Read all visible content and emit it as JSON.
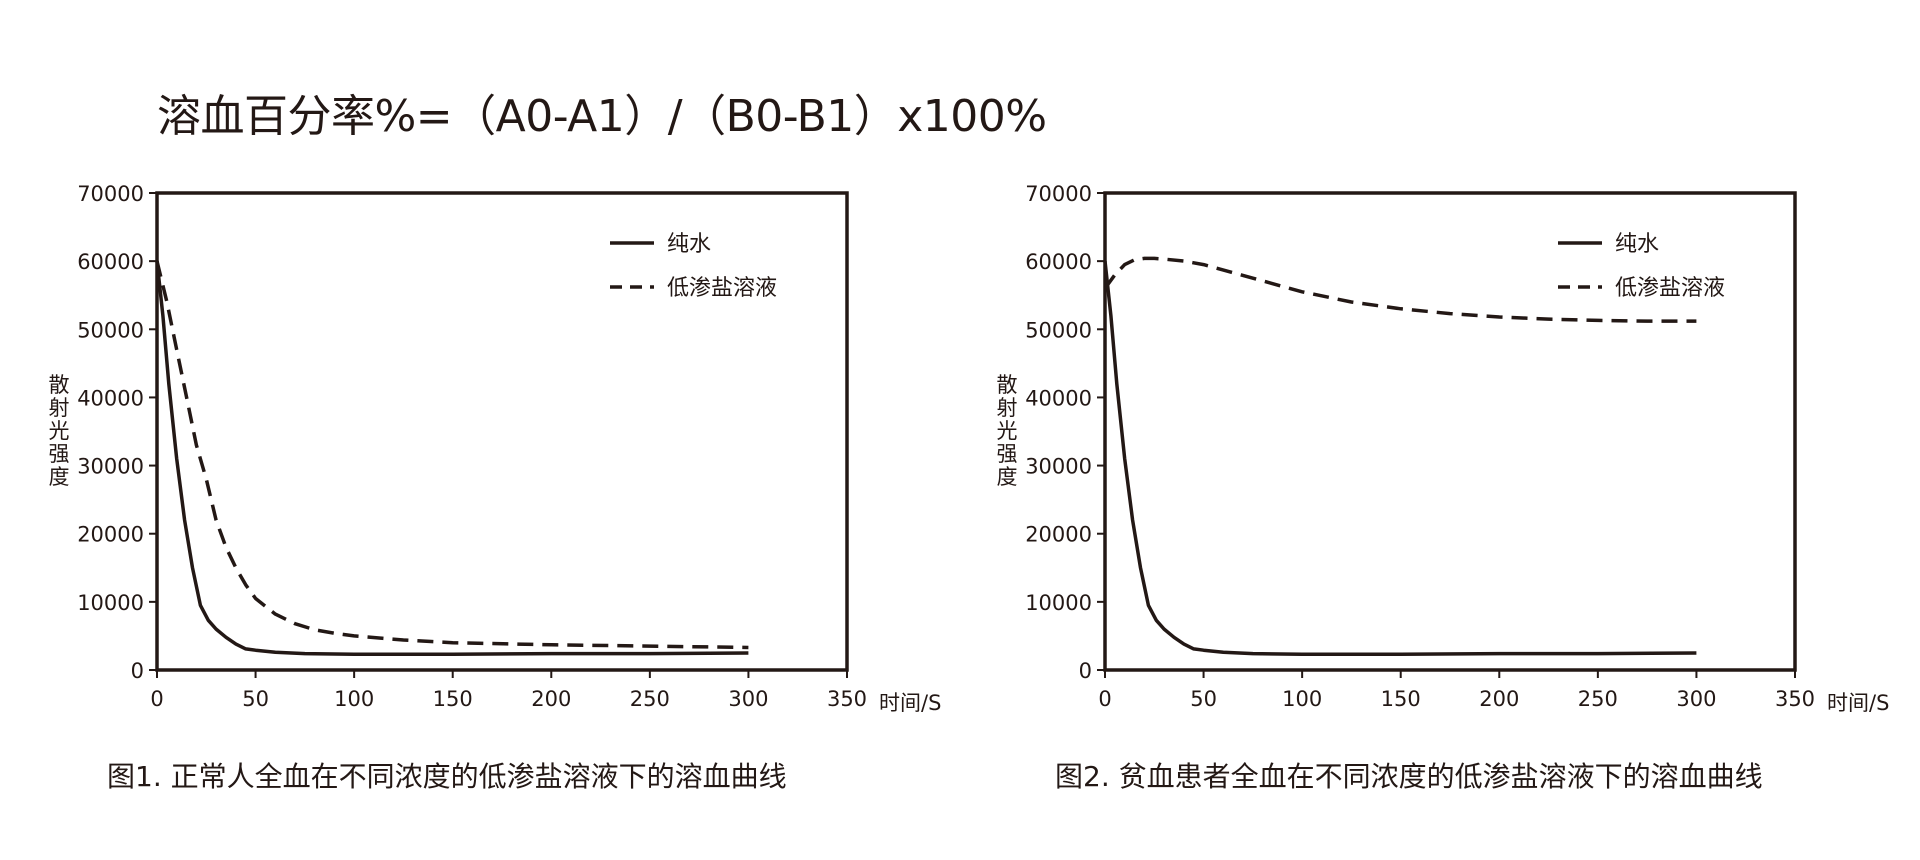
{
  "formula": "溶血百分率%=（A0-A1）/（B0-B1）x100%",
  "colors": {
    "ink": "#231815"
  },
  "chart_data": [
    {
      "type": "line",
      "caption": "图1. 正常人全血在不同浓度的低渗盐溶液下的溶血曲线",
      "xlabel": "时间/S",
      "ylabel": "散射光强度",
      "xlim": [
        0,
        350
      ],
      "ylim": [
        0,
        70000
      ],
      "xticks": [
        0,
        50,
        100,
        150,
        200,
        250,
        300,
        350
      ],
      "yticks": [
        0,
        10000,
        20000,
        30000,
        40000,
        50000,
        60000,
        70000
      ],
      "grid": false,
      "legend": "top-right",
      "series": [
        {
          "name": "纯水",
          "style": "solid",
          "x": [
            0,
            3,
            6,
            10,
            14,
            18,
            22,
            26,
            30,
            35,
            40,
            45,
            50,
            60,
            75,
            100,
            125,
            150,
            200,
            250,
            300
          ],
          "y": [
            60000,
            52000,
            42000,
            31000,
            22000,
            15000,
            9500,
            7300,
            6000,
            4800,
            3800,
            3100,
            2900,
            2600,
            2400,
            2300,
            2300,
            2300,
            2400,
            2400,
            2500
          ]
        },
        {
          "name": "低渗盐溶液",
          "style": "dashed",
          "x": [
            0,
            5,
            10,
            15,
            20,
            25,
            30,
            35,
            40,
            45,
            50,
            60,
            70,
            80,
            90,
            100,
            125,
            150,
            200,
            250,
            300
          ],
          "y": [
            60000,
            54000,
            47000,
            40000,
            33000,
            28000,
            22000,
            18000,
            15000,
            12500,
            10500,
            8200,
            6800,
            5900,
            5400,
            5000,
            4400,
            4000,
            3700,
            3500,
            3300
          ]
        }
      ]
    },
    {
      "type": "line",
      "caption": "图2. 贫血患者全血在不同浓度的低渗盐溶液下的溶血曲线",
      "xlabel": "时间/S",
      "ylabel": "散射光强度",
      "xlim": [
        0,
        350
      ],
      "ylim": [
        0,
        70000
      ],
      "xticks": [
        0,
        50,
        100,
        150,
        200,
        250,
        300,
        350
      ],
      "yticks": [
        0,
        10000,
        20000,
        30000,
        40000,
        50000,
        60000,
        70000
      ],
      "grid": false,
      "legend": "top-right",
      "series": [
        {
          "name": "纯水",
          "style": "solid",
          "x": [
            0,
            3,
            6,
            10,
            14,
            18,
            22,
            26,
            30,
            35,
            40,
            45,
            50,
            60,
            75,
            100,
            125,
            150,
            200,
            250,
            300
          ],
          "y": [
            60000,
            52000,
            42000,
            31000,
            22000,
            15000,
            9500,
            7300,
            6000,
            4800,
            3800,
            3100,
            2900,
            2600,
            2400,
            2300,
            2300,
            2300,
            2400,
            2400,
            2500
          ]
        },
        {
          "name": "低渗盐溶液",
          "style": "dashed",
          "x": [
            0,
            5,
            10,
            15,
            20,
            25,
            30,
            40,
            50,
            75,
            100,
            125,
            150,
            175,
            200,
            225,
            250,
            275,
            300
          ],
          "y": [
            56000,
            58000,
            59500,
            60200,
            60400,
            60400,
            60300,
            60000,
            59500,
            57500,
            55500,
            54000,
            53000,
            52300,
            51800,
            51500,
            51300,
            51200,
            51200
          ]
        }
      ]
    }
  ]
}
